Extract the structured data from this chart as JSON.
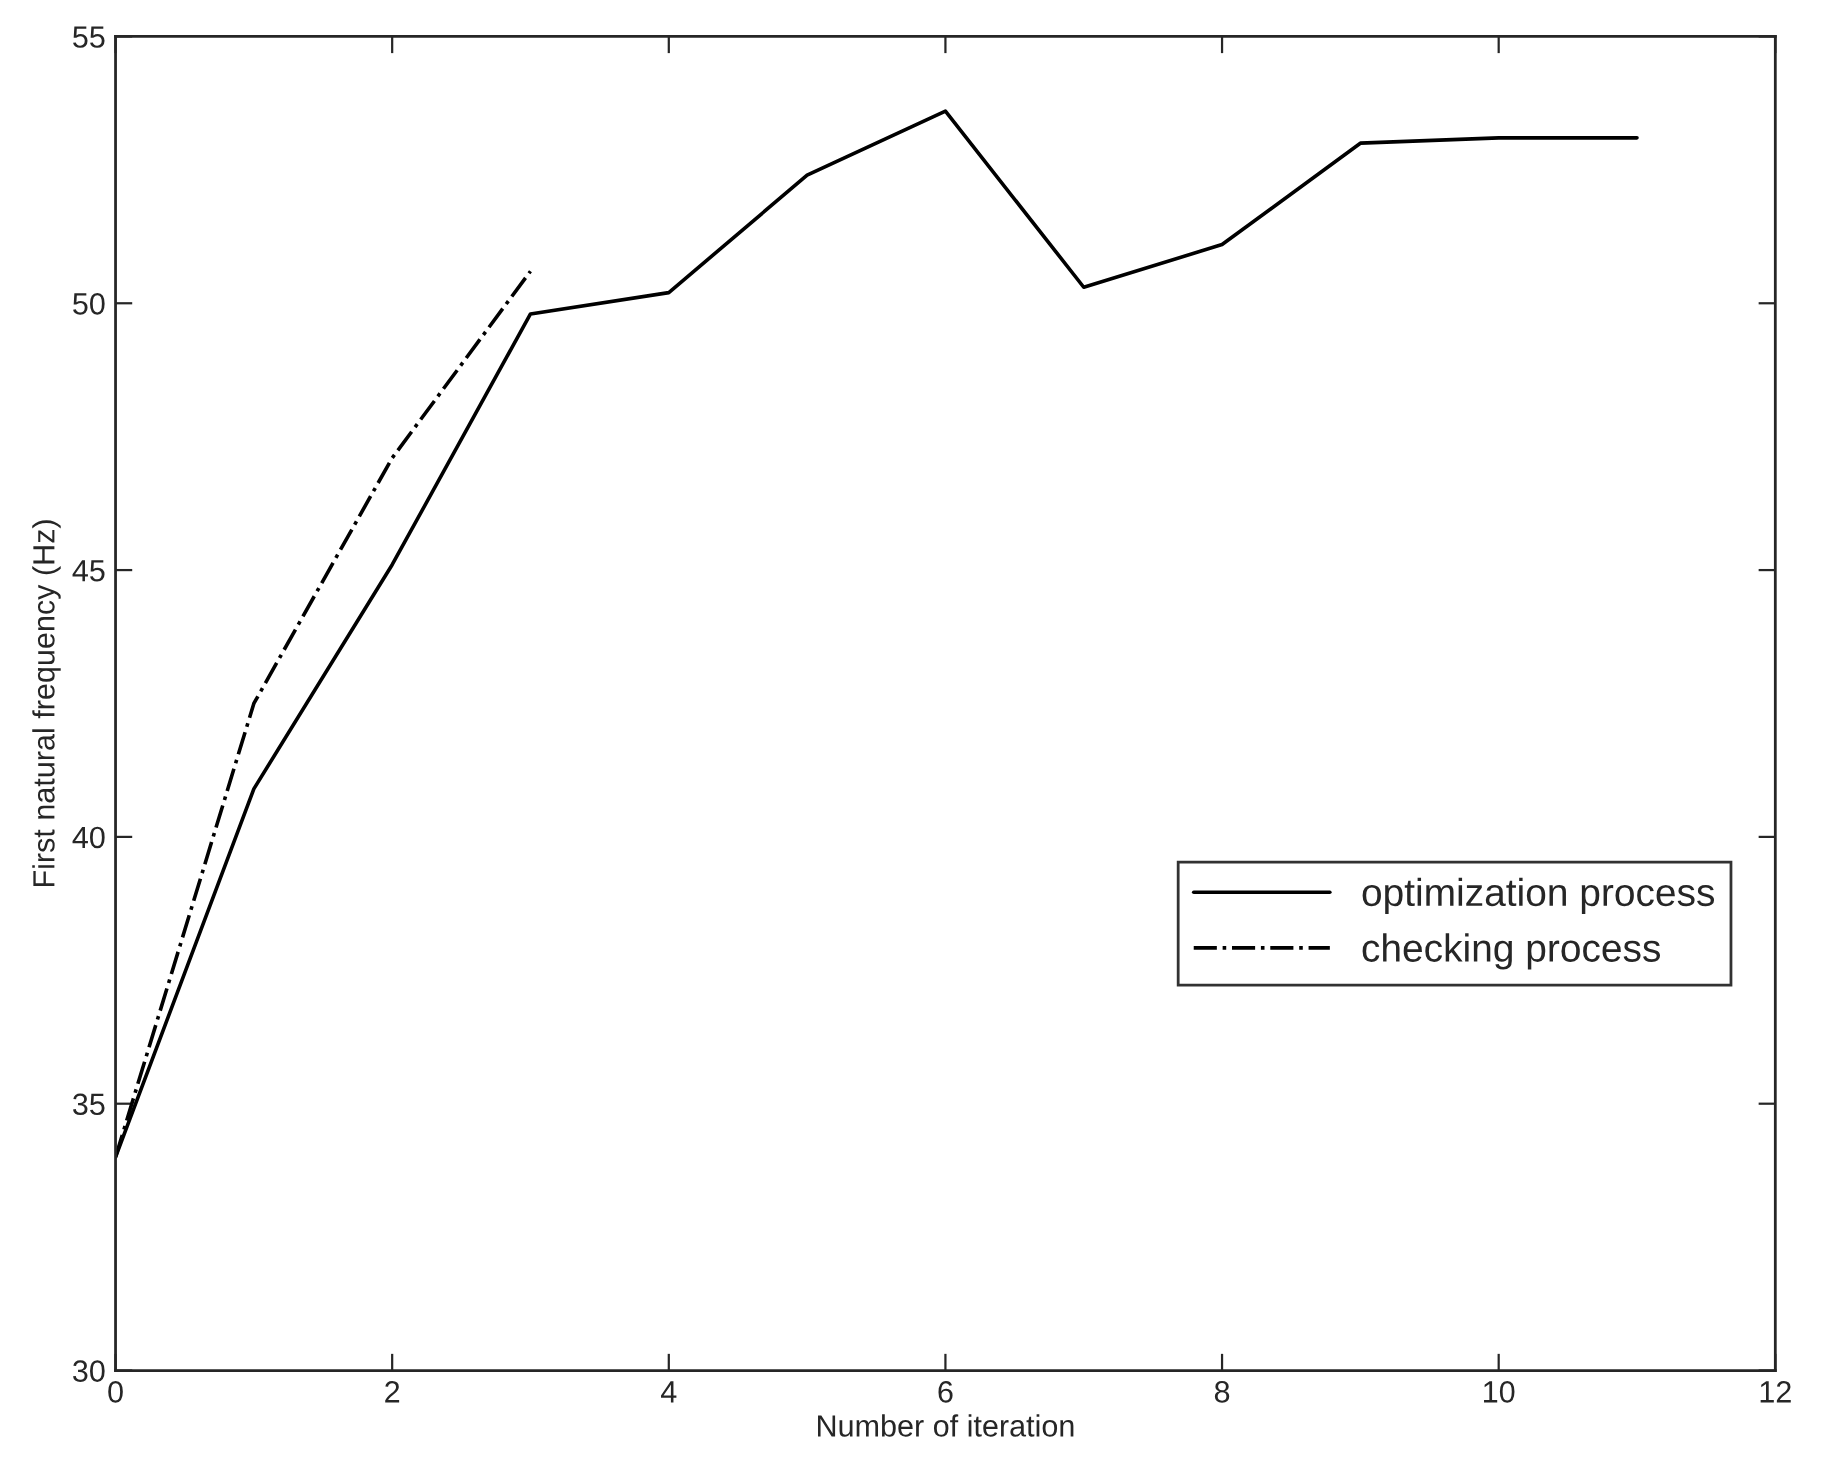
{
  "chart_data": {
    "type": "line",
    "xlabel": "Number of iteration",
    "ylabel": "First natural frequency (Hz)",
    "xlim": [
      0,
      12
    ],
    "xticks": [
      0,
      2,
      4,
      6,
      8,
      10,
      12
    ],
    "ylim": [
      30,
      55
    ],
    "yticks": [
      30,
      35,
      40,
      45,
      50,
      55
    ],
    "grid": false,
    "legend": "right",
    "marker": "none",
    "series": [
      {
        "name": "optimization process",
        "color": "#000000",
        "line_style": "solid",
        "x": [
          0,
          1,
          2,
          3,
          4,
          5,
          6,
          7,
          8,
          9,
          10,
          11
        ],
        "values": [
          34.0,
          40.9,
          45.1,
          49.8,
          50.2,
          52.4,
          53.6,
          50.3,
          51.1,
          53.0,
          53.1,
          53.1
        ]
      },
      {
        "name": "checking process",
        "color": "#000000",
        "line_style": "dashdot",
        "x": [
          0,
          1,
          2,
          3
        ],
        "values": [
          34.0,
          42.5,
          47.1,
          50.6
        ]
      }
    ]
  }
}
